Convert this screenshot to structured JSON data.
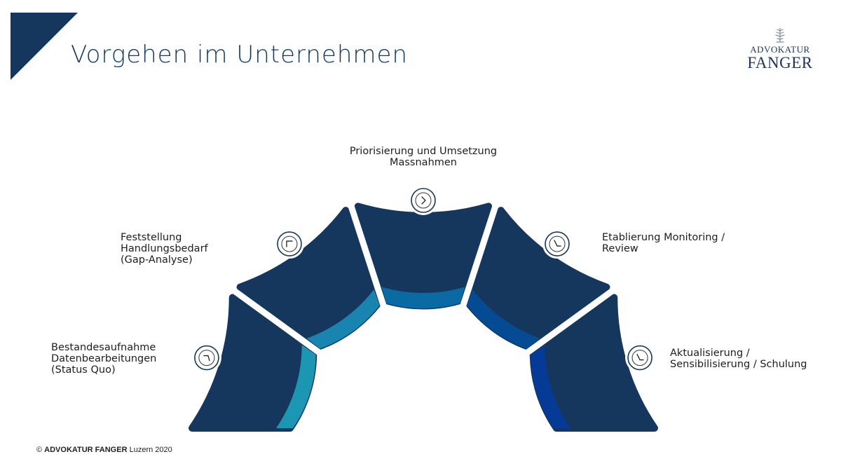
{
  "header": {
    "title": "Vorgehen im Unternehmen"
  },
  "logo": {
    "line1": "ADVOKATUR",
    "line2": "FANGER"
  },
  "colors": {
    "navy": "#15375e",
    "inner_ring": [
      "#1b97b4",
      "#1a84b0",
      "#0a6aa3",
      "#054b94",
      "#053a96"
    ],
    "title": "#143b66"
  },
  "steps": [
    {
      "label": "Bestandesaufnahme\nDatenbearbeitungen\n(Status Quo)",
      "icon": "clock-icon"
    },
    {
      "label": "Feststellung\nHandlungsbedarf\n(Gap-Analyse)",
      "icon": "clock-icon"
    },
    {
      "label": "Priorisierung und Umsetzung\nMassnahmen",
      "icon": "chevron-right-icon"
    },
    {
      "label": "Etablierung Monitoring /\nReview",
      "icon": "clock-icon"
    },
    {
      "label": "Aktualisierung /\nSensibilisierung / Schulung",
      "icon": "clock-icon"
    }
  ],
  "footer": {
    "copyright": "©",
    "company": "ADVOKATUR FANGER",
    "suffix": "Luzern 2020"
  }
}
